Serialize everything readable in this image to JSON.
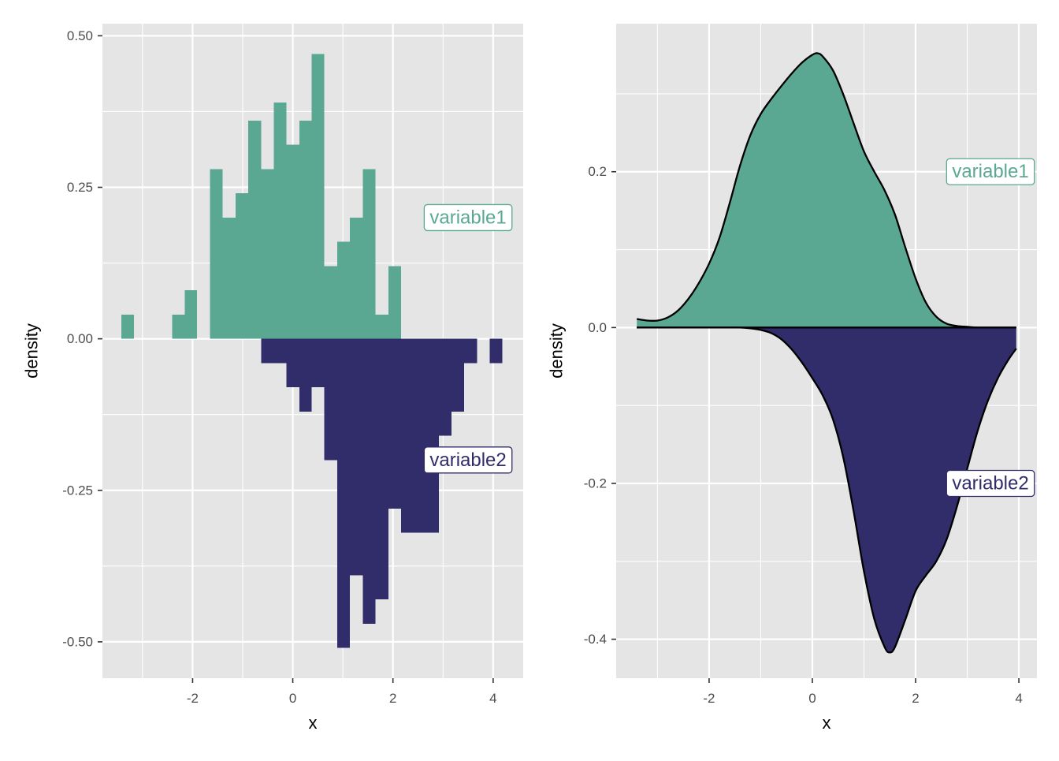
{
  "colors": {
    "variable1": "#5aa892",
    "variable2": "#312d6b",
    "panel_bg": "#e5e5e5",
    "grid": "#ffffff",
    "tick_text": "#4d4d4d",
    "outline": "#000000"
  },
  "chart_data": [
    {
      "type": "bar",
      "subtype": "mirrored histogram",
      "xlabel": "x",
      "ylabel": "density",
      "xlim": [
        -3.8,
        4.6
      ],
      "ylim": [
        -0.56,
        0.52
      ],
      "x_ticks": [
        -2,
        0,
        2,
        4
      ],
      "x_tick_labels": [
        "-2",
        "0",
        "2",
        "4"
      ],
      "y_ticks": [
        -0.5,
        -0.25,
        0,
        0.25,
        0.5
      ],
      "y_tick_labels": [
        "-0.50",
        "-0.25",
        "0.00",
        "0.25",
        "0.50"
      ],
      "bin_width": 0.254,
      "grid": true,
      "series": [
        {
          "name": "variable1",
          "direction": "up",
          "bins": [
            {
              "x0": -3.42,
              "x1": -3.17,
              "density": 0.04
            },
            {
              "x0": -2.41,
              "x1": -2.16,
              "density": 0.04
            },
            {
              "x0": -2.16,
              "x1": -1.91,
              "density": 0.08
            },
            {
              "x0": -1.65,
              "x1": -1.4,
              "density": 0.28
            },
            {
              "x0": -1.4,
              "x1": -1.14,
              "density": 0.2
            },
            {
              "x0": -1.14,
              "x1": -0.89,
              "density": 0.24
            },
            {
              "x0": -0.89,
              "x1": -0.63,
              "density": 0.36
            },
            {
              "x0": -0.63,
              "x1": -0.38,
              "density": 0.28
            },
            {
              "x0": -0.38,
              "x1": -0.13,
              "density": 0.39
            },
            {
              "x0": -0.13,
              "x1": 0.13,
              "density": 0.32
            },
            {
              "x0": 0.13,
              "x1": 0.38,
              "density": 0.36
            },
            {
              "x0": 0.38,
              "x1": 0.63,
              "density": 0.47
            },
            {
              "x0": 0.63,
              "x1": 0.89,
              "density": 0.12
            },
            {
              "x0": 0.89,
              "x1": 1.14,
              "density": 0.16
            },
            {
              "x0": 1.14,
              "x1": 1.4,
              "density": 0.2
            },
            {
              "x0": 1.4,
              "x1": 1.65,
              "density": 0.28
            },
            {
              "x0": 1.65,
              "x1": 1.91,
              "density": 0.04
            },
            {
              "x0": 1.91,
              "x1": 2.16,
              "density": 0.12
            }
          ]
        },
        {
          "name": "variable2",
          "direction": "down",
          "bins": [
            {
              "x0": -0.63,
              "x1": -0.13,
              "density": 0.04
            },
            {
              "x0": -0.13,
              "x1": 0.13,
              "density": 0.08
            },
            {
              "x0": 0.13,
              "x1": 0.38,
              "density": 0.12
            },
            {
              "x0": 0.38,
              "x1": 0.63,
              "density": 0.08
            },
            {
              "x0": 0.63,
              "x1": 0.89,
              "density": 0.2
            },
            {
              "x0": 0.89,
              "x1": 1.14,
              "density": 0.51
            },
            {
              "x0": 1.14,
              "x1": 1.4,
              "density": 0.39
            },
            {
              "x0": 1.4,
              "x1": 1.65,
              "density": 0.47
            },
            {
              "x0": 1.65,
              "x1": 1.91,
              "density": 0.43
            },
            {
              "x0": 1.91,
              "x1": 2.16,
              "density": 0.28
            },
            {
              "x0": 2.16,
              "x1": 2.92,
              "density": 0.32
            },
            {
              "x0": 2.92,
              "x1": 3.17,
              "density": 0.16
            },
            {
              "x0": 3.17,
              "x1": 3.42,
              "density": 0.12
            },
            {
              "x0": 3.42,
              "x1": 3.68,
              "density": 0.04
            },
            {
              "x0": 3.93,
              "x1": 4.18,
              "density": 0.04
            }
          ]
        }
      ],
      "annotations": [
        {
          "text": "variable1",
          "series": "variable1",
          "x": 3.5,
          "y": 0.2
        },
        {
          "text": "variable2",
          "series": "variable2",
          "x": 3.5,
          "y": -0.2
        }
      ]
    },
    {
      "type": "area",
      "subtype": "mirrored density",
      "xlabel": "x",
      "ylabel": "density",
      "xlim": [
        -3.8,
        4.35
      ],
      "ylim": [
        -0.45,
        0.39
      ],
      "x_ticks": [
        -2,
        0,
        2,
        4
      ],
      "x_tick_labels": [
        "-2",
        "0",
        "2",
        "4"
      ],
      "y_ticks": [
        -0.4,
        -0.2,
        0,
        0.2
      ],
      "y_tick_labels": [
        "-0.4",
        "-0.2",
        "0.0",
        "0.2"
      ],
      "grid": true,
      "series": [
        {
          "name": "variable1",
          "direction": "up",
          "x": [
            -3.4,
            -3.2,
            -3.0,
            -2.8,
            -2.6,
            -2.4,
            -2.2,
            -2.0,
            -1.8,
            -1.6,
            -1.4,
            -1.2,
            -1.0,
            -0.8,
            -0.6,
            -0.4,
            -0.2,
            0.0,
            0.1,
            0.2,
            0.4,
            0.6,
            0.8,
            1.0,
            1.2,
            1.4,
            1.6,
            1.8,
            2.0,
            2.2,
            2.4,
            2.6,
            2.8,
            3.0,
            3.2,
            3.4,
            3.6,
            3.8,
            3.95
          ],
          "values": [
            0.011,
            0.009,
            0.009,
            0.013,
            0.022,
            0.037,
            0.057,
            0.082,
            0.115,
            0.16,
            0.208,
            0.247,
            0.274,
            0.293,
            0.31,
            0.326,
            0.34,
            0.35,
            0.352,
            0.348,
            0.33,
            0.299,
            0.262,
            0.226,
            0.2,
            0.176,
            0.145,
            0.103,
            0.063,
            0.032,
            0.014,
            0.005,
            0.002,
            0.001,
            0.0,
            0.0,
            0.0,
            0.0,
            0.0
          ]
        },
        {
          "name": "variable2",
          "direction": "down",
          "x": [
            -3.4,
            -3.0,
            -2.6,
            -2.2,
            -2.0,
            -1.8,
            -1.6,
            -1.4,
            -1.2,
            -1.0,
            -0.8,
            -0.6,
            -0.4,
            -0.2,
            0.0,
            0.2,
            0.4,
            0.6,
            0.8,
            1.0,
            1.2,
            1.4,
            1.5,
            1.6,
            1.8,
            2.0,
            2.2,
            2.4,
            2.6,
            2.8,
            3.0,
            3.2,
            3.4,
            3.6,
            3.8,
            3.95
          ],
          "values": [
            0.0,
            0.0,
            0.0,
            0.0,
            0.0,
            0.0,
            0.0,
            0.0,
            0.001,
            0.003,
            0.007,
            0.015,
            0.028,
            0.045,
            0.065,
            0.087,
            0.118,
            0.167,
            0.236,
            0.313,
            0.374,
            0.41,
            0.417,
            0.41,
            0.375,
            0.338,
            0.318,
            0.3,
            0.272,
            0.23,
            0.181,
            0.133,
            0.094,
            0.064,
            0.041,
            0.027
          ]
        }
      ],
      "annotations": [
        {
          "text": "variable1",
          "series": "variable1",
          "x": 3.45,
          "y": 0.2
        },
        {
          "text": "variable2",
          "series": "variable2",
          "x": 3.45,
          "y": -0.2
        }
      ]
    }
  ]
}
